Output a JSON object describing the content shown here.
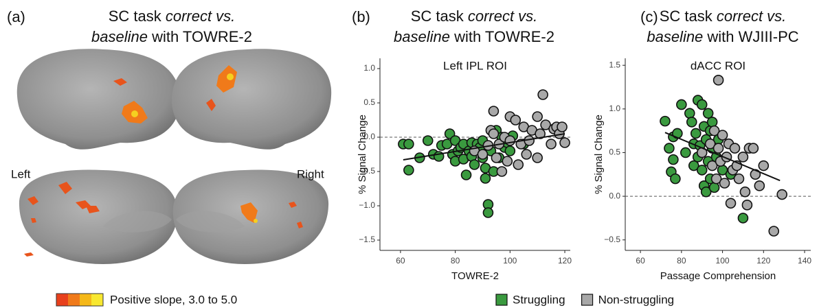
{
  "panel_a": {
    "label": "(a)",
    "title": [
      [
        {
          "text": "SC task "
        },
        {
          "text": "correct vs.",
          "italic": true
        }
      ],
      [
        {
          "text": "baseline",
          "italic": true
        },
        {
          "text": " with TOWRE-2"
        }
      ]
    ],
    "left_label": "Left",
    "right_label": "Right",
    "colorbar_label": "Positive slope, 3.0 to 5.0"
  },
  "chart_data": [
    {
      "type": "scatter",
      "label": "(b)",
      "title": [
        [
          {
            "text": "SC task "
          },
          {
            "text": "correct vs.",
            "italic": true
          }
        ],
        [
          {
            "text": "baseline",
            "italic": true
          },
          {
            "text": " with TOWRE-2"
          }
        ]
      ],
      "subtitle": "Left IPL ROI",
      "x_label": "TOWRE-2",
      "y_label": "% Signal Change",
      "xlim": [
        52.5,
        122
      ],
      "ylim": [
        -1.65,
        1.15
      ],
      "xticks": [
        60,
        80,
        100,
        120
      ],
      "yticks": [
        {
          "value": 1.0,
          "label": "1.0"
        },
        {
          "value": 0.5,
          "label": "0.5"
        },
        {
          "value": 0.0,
          "label": "0.0"
        },
        {
          "value": -0.5,
          "label": "−0.5"
        },
        {
          "value": -1.0,
          "label": "−1.0"
        },
        {
          "value": -1.5,
          "label": "−1.5"
        }
      ],
      "reference_line": 0,
      "series": [
        {
          "name": "Struggling",
          "color": "#3a9a3f",
          "x": [
            61,
            63,
            63,
            67,
            70,
            72,
            74,
            75,
            77,
            78,
            79,
            80,
            80,
            81,
            82,
            83,
            83,
            84,
            85,
            86,
            86,
            87,
            88,
            89,
            90,
            90,
            91,
            91,
            92,
            92,
            93,
            94,
            95,
            96,
            97,
            98,
            99,
            100,
            101,
            105
          ],
          "values": [
            -0.1,
            -0.1,
            -0.48,
            -0.3,
            -0.05,
            -0.25,
            -0.28,
            -0.12,
            -0.1,
            0.05,
            -0.25,
            -0.35,
            -0.05,
            -0.2,
            -0.15,
            -0.1,
            -0.32,
            -0.55,
            -0.2,
            -0.08,
            -0.28,
            -0.4,
            -0.1,
            -0.15,
            -0.3,
            -0.05,
            -0.45,
            -0.6,
            -0.98,
            -1.1,
            -0.2,
            -0.5,
            0.1,
            -0.3,
            0.0,
            -0.15,
            -0.08,
            -0.2,
            0.02,
            -0.1
          ]
        },
        {
          "name": "Non-struggling",
          "color": "#a8a8a8",
          "x": [
            87,
            90,
            92,
            93,
            94,
            94,
            95,
            96,
            97,
            98,
            99,
            100,
            100,
            102,
            103,
            104,
            105,
            106,
            107,
            108,
            110,
            110,
            111,
            112,
            113,
            115,
            116,
            117,
            118,
            119,
            120
          ],
          "values": [
            -0.2,
            -0.25,
            -0.12,
            0.1,
            0.38,
            0.05,
            -0.3,
            -0.1,
            -0.5,
            0.0,
            -0.35,
            0.3,
            -0.05,
            0.25,
            -0.4,
            -0.1,
            0.15,
            -0.25,
            -0.05,
            0.1,
            0.3,
            -0.3,
            0.05,
            0.62,
            0.18,
            -0.1,
            0.12,
            0.15,
            0.05,
            0.15,
            -0.08
          ]
        }
      ],
      "trendline": {
        "x": [
          61,
          120
        ],
        "y": [
          -0.33,
          0.05
        ]
      }
    },
    {
      "type": "scatter",
      "label": "(c)",
      "title": [
        [
          {
            "text": "SC task "
          },
          {
            "text": "correct vs.",
            "italic": true
          }
        ],
        [
          {
            "text": "baseline",
            "italic": true
          },
          {
            "text": " with WJIII-PC"
          }
        ]
      ],
      "subtitle": "dACC ROI",
      "x_label": "Passage Comprehension",
      "y_label": "% Signal Change",
      "xlim": [
        52.6,
        143
      ],
      "ylim": [
        -0.62,
        1.58
      ],
      "xticks": [
        60,
        80,
        100,
        120,
        140
      ],
      "yticks": [
        {
          "value": 1.5,
          "label": "1.5"
        },
        {
          "value": 1.0,
          "label": "1.0"
        },
        {
          "value": 0.5,
          "label": "0.5"
        },
        {
          "value": 0.0,
          "label": "0.0"
        },
        {
          "value": -0.5,
          "label": "−0.5"
        }
      ],
      "reference_line": 0,
      "series": [
        {
          "color": "#3a9a3f",
          "x": [
            72,
            74,
            75,
            76,
            76,
            77,
            78,
            80,
            82,
            84,
            85,
            86,
            86,
            87,
            88,
            88,
            89,
            90,
            90,
            91,
            91,
            92,
            92,
            93,
            93,
            94,
            94,
            95,
            95,
            96,
            97,
            98,
            100,
            104,
            110
          ],
          "values": [
            0.86,
            0.55,
            0.28,
            0.68,
            0.42,
            0.2,
            0.72,
            1.05,
            0.5,
            0.95,
            0.85,
            0.6,
            0.35,
            0.72,
            1.1,
            0.45,
            0.58,
            1.05,
            0.3,
            0.8,
            0.12,
            0.65,
            0.05,
            0.95,
            0.4,
            0.75,
            0.2,
            0.55,
            0.85,
            0.1,
            0.45,
            0.65,
            0.3,
            0.25,
            -0.25
          ]
        },
        {
          "color": "#a8a8a8",
          "x": [
            90,
            94,
            95,
            96,
            97,
            98,
            98,
            99,
            100,
            101,
            102,
            103,
            104,
            105,
            106,
            107,
            108,
            110,
            111,
            112,
            113,
            115,
            116,
            118,
            120,
            125,
            129
          ],
          "values": [
            0.5,
            0.6,
            0.35,
            0.75,
            0.2,
            1.33,
            0.55,
            0.4,
            0.7,
            0.15,
            0.45,
            0.6,
            -0.08,
            0.3,
            0.55,
            0.35,
            0.2,
            0.45,
            0.05,
            -0.1,
            0.55,
            0.55,
            0.25,
            0.12,
            0.35,
            -0.4,
            0.02
          ]
        }
      ],
      "trendline": {
        "x": [
          72,
          128
        ],
        "y": [
          0.73,
          0.18
        ]
      }
    }
  ]
}
